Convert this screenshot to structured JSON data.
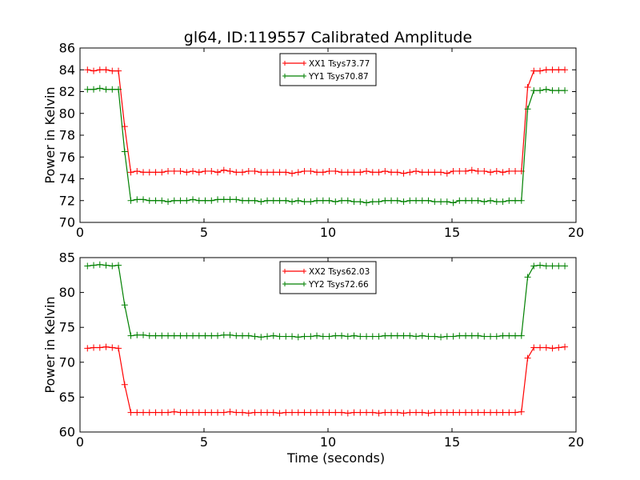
{
  "title": "gl64, ID:119557 Calibrated Amplitude",
  "chart_data": [
    {
      "type": "line",
      "ylabel": "Power in Kelvin",
      "xlabel": "",
      "xlim": [
        0,
        20
      ],
      "ylim": [
        70,
        86
      ],
      "xticks": [
        0,
        5,
        10,
        15,
        20
      ],
      "yticks": [
        70,
        72,
        74,
        76,
        78,
        80,
        82,
        84,
        86
      ],
      "legend_position": "top-center",
      "grid": false,
      "series": [
        {
          "name": "XX1 Tsys73.77",
          "color": "#ff0000",
          "x": [
            0.3,
            0.55,
            0.8,
            1.05,
            1.3,
            1.55,
            1.8,
            2.05,
            2.3,
            2.55,
            2.8,
            3.05,
            3.3,
            3.55,
            3.8,
            4.05,
            4.3,
            4.55,
            4.8,
            5.05,
            5.3,
            5.55,
            5.8,
            6.05,
            6.3,
            6.55,
            6.8,
            7.05,
            7.3,
            7.55,
            7.8,
            8.05,
            8.3,
            8.55,
            8.8,
            9.05,
            9.3,
            9.55,
            9.8,
            10.05,
            10.3,
            10.55,
            10.8,
            11.05,
            11.3,
            11.55,
            11.8,
            12.05,
            12.3,
            12.55,
            12.8,
            13.05,
            13.3,
            13.55,
            13.8,
            14.05,
            14.3,
            14.55,
            14.8,
            15.05,
            15.3,
            15.55,
            15.8,
            16.05,
            16.3,
            16.55,
            16.8,
            17.05,
            17.3,
            17.55,
            17.8,
            18.05,
            18.3,
            18.55,
            18.8,
            19.05,
            19.3,
            19.55
          ],
          "values": [
            84.0,
            83.9,
            84.0,
            84.0,
            83.9,
            83.9,
            78.8,
            74.6,
            74.7,
            74.6,
            74.6,
            74.6,
            74.6,
            74.7,
            74.7,
            74.7,
            74.6,
            74.7,
            74.6,
            74.7,
            74.7,
            74.6,
            74.8,
            74.7,
            74.6,
            74.6,
            74.7,
            74.7,
            74.6,
            74.6,
            74.6,
            74.6,
            74.6,
            74.5,
            74.6,
            74.7,
            74.7,
            74.6,
            74.6,
            74.7,
            74.7,
            74.6,
            74.6,
            74.6,
            74.6,
            74.7,
            74.6,
            74.6,
            74.7,
            74.6,
            74.6,
            74.5,
            74.6,
            74.7,
            74.6,
            74.6,
            74.6,
            74.6,
            74.5,
            74.7,
            74.7,
            74.7,
            74.8,
            74.7,
            74.7,
            74.6,
            74.7,
            74.6,
            74.7,
            74.7,
            74.7,
            82.4,
            83.9,
            83.9,
            84.0,
            84.0,
            84.0,
            84.0
          ]
        },
        {
          "name": "YY1 Tsys70.87",
          "color": "#008000",
          "x": [
            0.3,
            0.55,
            0.8,
            1.05,
            1.3,
            1.55,
            1.8,
            2.05,
            2.3,
            2.55,
            2.8,
            3.05,
            3.3,
            3.55,
            3.8,
            4.05,
            4.3,
            4.55,
            4.8,
            5.05,
            5.3,
            5.55,
            5.8,
            6.05,
            6.3,
            6.55,
            6.8,
            7.05,
            7.3,
            7.55,
            7.8,
            8.05,
            8.3,
            8.55,
            8.8,
            9.05,
            9.3,
            9.55,
            9.8,
            10.05,
            10.3,
            10.55,
            10.8,
            11.05,
            11.3,
            11.55,
            11.8,
            12.05,
            12.3,
            12.55,
            12.8,
            13.05,
            13.3,
            13.55,
            13.8,
            14.05,
            14.3,
            14.55,
            14.8,
            15.05,
            15.3,
            15.55,
            15.8,
            16.05,
            16.3,
            16.55,
            16.8,
            17.05,
            17.3,
            17.55,
            17.8,
            18.05,
            18.3,
            18.55,
            18.8,
            19.05,
            19.3,
            19.55
          ],
          "values": [
            82.2,
            82.2,
            82.3,
            82.2,
            82.2,
            82.2,
            76.5,
            72.0,
            72.1,
            72.1,
            72.0,
            72.0,
            72.0,
            71.9,
            72.0,
            72.0,
            72.0,
            72.1,
            72.0,
            72.0,
            72.0,
            72.1,
            72.1,
            72.1,
            72.1,
            72.0,
            72.0,
            72.0,
            71.9,
            72.0,
            72.0,
            72.0,
            72.0,
            71.9,
            72.0,
            71.9,
            71.9,
            72.0,
            72.0,
            72.0,
            71.9,
            72.0,
            72.0,
            71.9,
            71.9,
            71.8,
            71.9,
            71.9,
            72.0,
            72.0,
            72.0,
            71.9,
            72.0,
            72.0,
            72.0,
            72.0,
            71.9,
            71.9,
            71.9,
            71.8,
            72.0,
            72.0,
            72.0,
            72.0,
            71.9,
            72.0,
            71.9,
            71.9,
            72.0,
            72.0,
            72.0,
            80.4,
            82.1,
            82.1,
            82.2,
            82.1,
            82.1,
            82.1
          ]
        }
      ]
    },
    {
      "type": "line",
      "ylabel": "Power in Kelvin",
      "xlabel": "Time (seconds)",
      "xlim": [
        0,
        20
      ],
      "ylim": [
        60,
        85
      ],
      "xticks": [
        0,
        5,
        10,
        15,
        20
      ],
      "yticks": [
        60,
        65,
        70,
        75,
        80,
        85
      ],
      "legend_position": "top-center",
      "grid": false,
      "series": [
        {
          "name": "XX2 Tsys62.03",
          "color": "#ff0000",
          "x": [
            0.3,
            0.55,
            0.8,
            1.05,
            1.3,
            1.55,
            1.8,
            2.05,
            2.3,
            2.55,
            2.8,
            3.05,
            3.3,
            3.55,
            3.8,
            4.05,
            4.3,
            4.55,
            4.8,
            5.05,
            5.3,
            5.55,
            5.8,
            6.05,
            6.3,
            6.55,
            6.8,
            7.05,
            7.3,
            7.55,
            7.8,
            8.05,
            8.3,
            8.55,
            8.8,
            9.05,
            9.3,
            9.55,
            9.8,
            10.05,
            10.3,
            10.55,
            10.8,
            11.05,
            11.3,
            11.55,
            11.8,
            12.05,
            12.3,
            12.55,
            12.8,
            13.05,
            13.3,
            13.55,
            13.8,
            14.05,
            14.3,
            14.55,
            14.8,
            15.05,
            15.3,
            15.55,
            15.8,
            16.05,
            16.3,
            16.55,
            16.8,
            17.05,
            17.3,
            17.55,
            17.8,
            18.05,
            18.3,
            18.55,
            18.8,
            19.05,
            19.3,
            19.55
          ],
          "values": [
            72.0,
            72.1,
            72.1,
            72.2,
            72.1,
            72.0,
            66.8,
            62.8,
            62.8,
            62.8,
            62.8,
            62.8,
            62.8,
            62.8,
            62.9,
            62.8,
            62.8,
            62.8,
            62.8,
            62.8,
            62.8,
            62.8,
            62.8,
            62.9,
            62.8,
            62.8,
            62.7,
            62.8,
            62.8,
            62.8,
            62.8,
            62.7,
            62.8,
            62.8,
            62.8,
            62.8,
            62.8,
            62.8,
            62.8,
            62.8,
            62.8,
            62.8,
            62.7,
            62.8,
            62.8,
            62.8,
            62.8,
            62.7,
            62.8,
            62.8,
            62.8,
            62.7,
            62.8,
            62.8,
            62.8,
            62.7,
            62.8,
            62.8,
            62.8,
            62.8,
            62.8,
            62.8,
            62.8,
            62.8,
            62.8,
            62.8,
            62.8,
            62.8,
            62.8,
            62.8,
            62.9,
            70.6,
            72.1,
            72.1,
            72.1,
            72.0,
            72.1,
            72.2
          ]
        },
        {
          "name": "YY2 Tsys72.66",
          "color": "#008000",
          "x": [
            0.3,
            0.55,
            0.8,
            1.05,
            1.3,
            1.55,
            1.8,
            2.05,
            2.3,
            2.55,
            2.8,
            3.05,
            3.3,
            3.55,
            3.8,
            4.05,
            4.3,
            4.55,
            4.8,
            5.05,
            5.3,
            5.55,
            5.8,
            6.05,
            6.3,
            6.55,
            6.8,
            7.05,
            7.3,
            7.55,
            7.8,
            8.05,
            8.3,
            8.55,
            8.8,
            9.05,
            9.3,
            9.55,
            9.8,
            10.05,
            10.3,
            10.55,
            10.8,
            11.05,
            11.3,
            11.55,
            11.8,
            12.05,
            12.3,
            12.55,
            12.8,
            13.05,
            13.3,
            13.55,
            13.8,
            14.05,
            14.3,
            14.55,
            14.8,
            15.05,
            15.3,
            15.55,
            15.8,
            16.05,
            16.3,
            16.55,
            16.8,
            17.05,
            17.3,
            17.55,
            17.8,
            18.05,
            18.3,
            18.55,
            18.8,
            19.05,
            19.3,
            19.55
          ],
          "values": [
            83.8,
            83.9,
            84.0,
            83.9,
            83.8,
            83.9,
            78.2,
            73.8,
            73.9,
            73.9,
            73.8,
            73.8,
            73.8,
            73.8,
            73.8,
            73.8,
            73.8,
            73.8,
            73.8,
            73.8,
            73.8,
            73.8,
            73.9,
            73.9,
            73.8,
            73.8,
            73.8,
            73.7,
            73.6,
            73.7,
            73.8,
            73.7,
            73.7,
            73.7,
            73.6,
            73.7,
            73.7,
            73.8,
            73.7,
            73.7,
            73.8,
            73.8,
            73.7,
            73.8,
            73.7,
            73.7,
            73.7,
            73.7,
            73.8,
            73.8,
            73.8,
            73.8,
            73.8,
            73.7,
            73.8,
            73.7,
            73.7,
            73.6,
            73.7,
            73.7,
            73.8,
            73.8,
            73.8,
            73.8,
            73.7,
            73.7,
            73.7,
            73.8,
            73.8,
            73.8,
            73.8,
            82.2,
            83.8,
            83.9,
            83.8,
            83.8,
            83.8,
            83.8
          ]
        }
      ]
    }
  ]
}
